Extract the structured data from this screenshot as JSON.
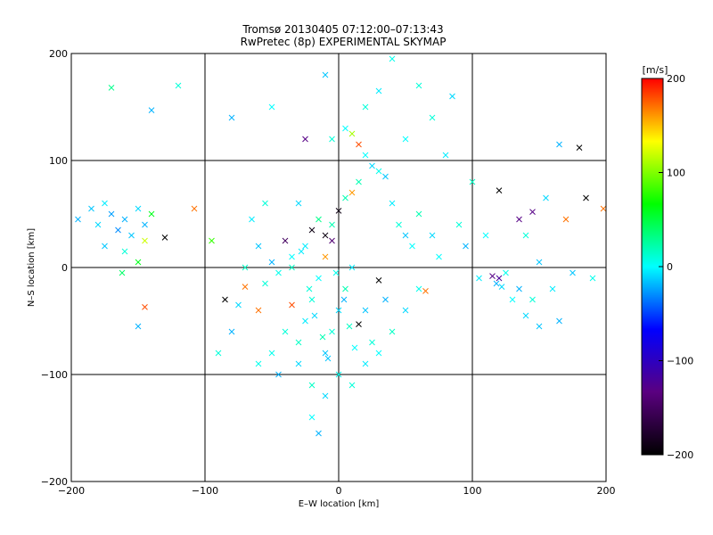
{
  "chart_data": {
    "type": "scatter",
    "title": "Tromsø 20130405 07:12:00–07:13:43",
    "subtitle": "RwPretec (8p) EXPERIMENTAL SKYMAP",
    "xlabel": "E–W location [km]",
    "ylabel": "N–S location [km]",
    "xlim": [
      -200,
      200
    ],
    "ylim": [
      -200,
      200
    ],
    "xticks": [
      -200,
      -100,
      0,
      100,
      200
    ],
    "yticks": [
      -200,
      -100,
      0,
      100,
      200
    ],
    "grid": true,
    "colorbar": {
      "label": "[m/s]",
      "range": [
        -200,
        200
      ],
      "ticks": [
        -200,
        -100,
        0,
        100,
        200
      ],
      "colors": [
        "#000000",
        "#5a0080",
        "#0000ff",
        "#00ffff",
        "#00ff00",
        "#ffff00",
        "#ff0000"
      ]
    },
    "points": [
      [
        -195,
        45,
        -20
      ],
      [
        -185,
        55,
        -15
      ],
      [
        -180,
        40,
        -10
      ],
      [
        -175,
        60,
        -5
      ],
      [
        -170,
        50,
        -25
      ],
      [
        -165,
        35,
        -30
      ],
      [
        -160,
        45,
        -20
      ],
      [
        -155,
        30,
        -15
      ],
      [
        -150,
        55,
        -10
      ],
      [
        -145,
        40,
        -20
      ],
      [
        -175,
        20,
        -15
      ],
      [
        -160,
        15,
        10
      ],
      [
        -150,
        5,
        60
      ],
      [
        -162,
        -5,
        40
      ],
      [
        -140,
        50,
        60
      ],
      [
        -140,
        147,
        -20
      ],
      [
        -120,
        170,
        10
      ],
      [
        -170,
        168,
        30
      ],
      [
        -145,
        25,
        120
      ],
      [
        -130,
        28,
        -200
      ],
      [
        -108,
        55,
        170
      ],
      [
        -95,
        25,
        80
      ],
      [
        -80,
        140,
        -20
      ],
      [
        -145,
        -37,
        180
      ],
      [
        -150,
        -55,
        -20
      ],
      [
        -85,
        -30,
        -200
      ],
      [
        -75,
        -35,
        -10
      ],
      [
        -70,
        -18,
        170
      ],
      [
        -60,
        -40,
        170
      ],
      [
        -60,
        20,
        -15
      ],
      [
        -55,
        -15,
        10
      ],
      [
        -50,
        5,
        -20
      ],
      [
        -45,
        -5,
        5
      ],
      [
        -40,
        25,
        -150
      ],
      [
        -35,
        10,
        0
      ],
      [
        -35,
        -35,
        180
      ],
      [
        -25,
        120,
        -130
      ],
      [
        -25,
        20,
        -5
      ],
      [
        -20,
        35,
        -190
      ],
      [
        -15,
        45,
        30
      ],
      [
        -10,
        30,
        -190
      ],
      [
        -5,
        25,
        -140
      ],
      [
        -5,
        40,
        20
      ],
      [
        0,
        53,
        -190
      ],
      [
        5,
        65,
        20
      ],
      [
        -10,
        10,
        160
      ],
      [
        -15,
        -10,
        0
      ],
      [
        -20,
        -30,
        10
      ],
      [
        -25,
        -50,
        -5
      ],
      [
        -30,
        -70,
        15
      ],
      [
        -10,
        -80,
        -15
      ],
      [
        -5,
        -60,
        10
      ],
      [
        0,
        -40,
        -10
      ],
      [
        5,
        -20,
        20
      ],
      [
        10,
        0,
        -5
      ],
      [
        15,
        -53,
        -200
      ],
      [
        20,
        -40,
        -15
      ],
      [
        25,
        -70,
        10
      ],
      [
        30,
        -12,
        -200
      ],
      [
        35,
        -30,
        -20
      ],
      [
        0,
        -100,
        5
      ],
      [
        -10,
        -120,
        -10
      ],
      [
        -20,
        -140,
        0
      ],
      [
        -15,
        -155,
        -20
      ],
      [
        10,
        -110,
        10
      ],
      [
        20,
        -90,
        -5
      ],
      [
        30,
        -80,
        0
      ],
      [
        40,
        -60,
        15
      ],
      [
        50,
        -40,
        -10
      ],
      [
        60,
        -20,
        5
      ],
      [
        10,
        70,
        160
      ],
      [
        15,
        115,
        180
      ],
      [
        20,
        105,
        0
      ],
      [
        25,
        95,
        -10
      ],
      [
        30,
        90,
        5
      ],
      [
        35,
        85,
        -15
      ],
      [
        10,
        125,
        110
      ],
      [
        5,
        130,
        0
      ],
      [
        -5,
        120,
        10
      ],
      [
        15,
        80,
        20
      ],
      [
        40,
        60,
        -5
      ],
      [
        45,
        40,
        10
      ],
      [
        50,
        30,
        -15
      ],
      [
        55,
        20,
        0
      ],
      [
        60,
        50,
        20
      ],
      [
        65,
        -22,
        170
      ],
      [
        70,
        30,
        -10
      ],
      [
        75,
        10,
        0
      ],
      [
        80,
        105,
        -5
      ],
      [
        85,
        160,
        -10
      ],
      [
        90,
        40,
        10
      ],
      [
        95,
        20,
        -20
      ],
      [
        100,
        80,
        15
      ],
      [
        105,
        -10,
        -5
      ],
      [
        110,
        30,
        0
      ],
      [
        115,
        -8,
        -130
      ],
      [
        120,
        -10,
        -120
      ],
      [
        118,
        -15,
        -20
      ],
      [
        122,
        -18,
        -10
      ],
      [
        125,
        -5,
        5
      ],
      [
        120,
        72,
        -200
      ],
      [
        135,
        45,
        -130
      ],
      [
        145,
        52,
        -130
      ],
      [
        155,
        65,
        -10
      ],
      [
        170,
        45,
        170
      ],
      [
        180,
        112,
        -200
      ],
      [
        185,
        65,
        -200
      ],
      [
        198,
        55,
        170
      ],
      [
        165,
        115,
        -20
      ],
      [
        140,
        30,
        10
      ],
      [
        150,
        5,
        -15
      ],
      [
        160,
        -20,
        -5
      ],
      [
        165,
        -50,
        -20
      ],
      [
        150,
        -55,
        -15
      ],
      [
        140,
        -45,
        -10
      ],
      [
        130,
        -30,
        0
      ],
      [
        135,
        -20,
        -20
      ],
      [
        145,
        -30,
        10
      ],
      [
        175,
        -5,
        -15
      ],
      [
        190,
        -10,
        5
      ],
      [
        -40,
        -60,
        10
      ],
      [
        -30,
        -90,
        -10
      ],
      [
        -20,
        -110,
        15
      ],
      [
        -50,
        -80,
        5
      ],
      [
        -45,
        -100,
        -20
      ],
      [
        -35,
        0,
        15
      ],
      [
        -28,
        15,
        -5
      ],
      [
        -22,
        -20,
        10
      ],
      [
        -18,
        -45,
        -10
      ],
      [
        -12,
        -65,
        20
      ],
      [
        -8,
        -85,
        -15
      ],
      [
        -2,
        -5,
        5
      ],
      [
        4,
        -30,
        -20
      ],
      [
        8,
        -55,
        15
      ],
      [
        12,
        -75,
        0
      ],
      [
        -55,
        60,
        10
      ],
      [
        -65,
        45,
        -5
      ],
      [
        -70,
        0,
        15
      ],
      [
        -80,
        -60,
        -20
      ],
      [
        -90,
        -80,
        10
      ],
      [
        -60,
        -90,
        5
      ],
      [
        -30,
        60,
        -10
      ],
      [
        20,
        150,
        10
      ],
      [
        30,
        165,
        -5
      ],
      [
        50,
        120,
        0
      ],
      [
        70,
        140,
        10
      ],
      [
        40,
        195,
        5
      ],
      [
        -10,
        180,
        -15
      ],
      [
        60,
        170,
        10
      ],
      [
        -50,
        150,
        0
      ]
    ]
  }
}
